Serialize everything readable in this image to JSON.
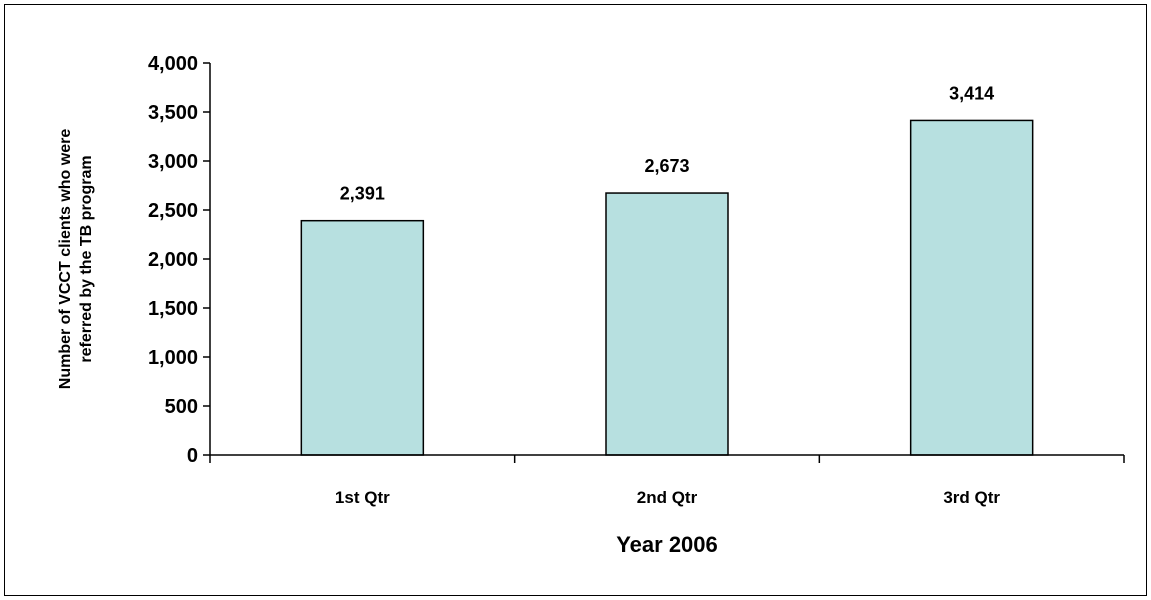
{
  "chart_data": {
    "type": "bar",
    "title": "",
    "categories": [
      "1st Qtr",
      "2nd Qtr",
      "3rd Qtr"
    ],
    "values": [
      2391,
      2673,
      3414
    ],
    "value_labels": [
      "2,391",
      "2,673",
      "3,414"
    ],
    "xlabel": "Year 2006",
    "ylabel_lines": [
      "Number of VCCT clients who were",
      "referred by the TB program"
    ],
    "ylim": [
      0,
      4000
    ],
    "yticks": [
      0,
      500,
      1000,
      1500,
      2000,
      2500,
      3000,
      3500,
      4000
    ],
    "ytick_labels": [
      "0",
      "500",
      "1,000",
      "1,500",
      "2,000",
      "2,500",
      "3,000",
      "3,500",
      "4,000"
    ],
    "grid": false,
    "legend": "none",
    "bar_color": "#b7e0e0",
    "bar_edge_color": "#000000"
  }
}
